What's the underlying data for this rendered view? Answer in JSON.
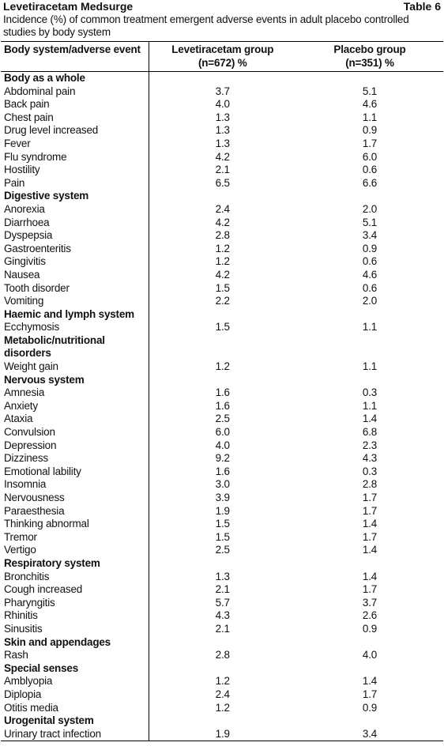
{
  "header": {
    "title": "Levetiracetam Medsurge",
    "table_number": "Table 6",
    "subtitle": "Incidence (%) of common treatment emergent adverse events in adult placebo controlled studies by body system"
  },
  "table": {
    "columns": [
      [
        "Body system/adverse event"
      ],
      [
        "Levetiracetam group",
        "(n=672) %"
      ],
      [
        "Placebo group",
        "(n=351) %"
      ]
    ],
    "groups": [
      {
        "name": "Body as a whole",
        "rows": [
          [
            "Abdominal pain",
            "3.7",
            "5.1"
          ],
          [
            "Back pain",
            "4.0",
            "4.6"
          ],
          [
            "Chest pain",
            "1.3",
            "1.1"
          ],
          [
            "Drug level increased",
            "1.3",
            "0.9"
          ],
          [
            "Fever",
            "1.3",
            "1.7"
          ],
          [
            "Flu syndrome",
            "4.2",
            "6.0"
          ],
          [
            "Hostility",
            "2.1",
            "0.6"
          ],
          [
            "Pain",
            "6.5",
            "6.6"
          ]
        ]
      },
      {
        "name": "Digestive system",
        "rows": [
          [
            "Anorexia",
            "2.4",
            "2.0"
          ],
          [
            "Diarrhoea",
            "4.2",
            "5.1"
          ],
          [
            "Dyspepsia",
            "2.8",
            "3.4"
          ],
          [
            "Gastroenteritis",
            "1.2",
            "0.9"
          ],
          [
            "Gingivitis",
            "1.2",
            "0.6"
          ],
          [
            "Nausea",
            "4.2",
            "4.6"
          ],
          [
            "Tooth disorder",
            "1.5",
            "0.6"
          ],
          [
            "Vomiting",
            "2.2",
            "2.0"
          ]
        ]
      },
      {
        "name": "Haemic and lymph system",
        "rows": [
          [
            "Ecchymosis",
            "1.5",
            "1.1"
          ]
        ]
      },
      {
        "name": "Metabolic/nutritional disorders",
        "rows": [
          [
            "Weight gain",
            "1.2",
            "1.1"
          ]
        ]
      },
      {
        "name": "Nervous system",
        "rows": [
          [
            "Amnesia",
            "1.6",
            "0.3"
          ],
          [
            "Anxiety",
            "1.6",
            "1.1"
          ],
          [
            "Ataxia",
            "2.5",
            "1.4"
          ],
          [
            "Convulsion",
            "6.0",
            "6.8"
          ],
          [
            "Depression",
            "4.0",
            "2.3"
          ],
          [
            "Dizziness",
            "9.2",
            "4.3"
          ],
          [
            "Emotional lability",
            "1.6",
            "0.3"
          ],
          [
            "Insomnia",
            "3.0",
            "2.8"
          ],
          [
            "Nervousness",
            "3.9",
            "1.7"
          ],
          [
            "Paraesthesia",
            "1.9",
            "1.7"
          ],
          [
            "Thinking abnormal",
            "1.5",
            "1.4"
          ],
          [
            "Tremor",
            "1.5",
            "1.7"
          ],
          [
            "Vertigo",
            "2.5",
            "1.4"
          ]
        ]
      },
      {
        "name": "Respiratory system",
        "rows": [
          [
            "Bronchitis",
            "1.3",
            "1.4"
          ],
          [
            "Cough increased",
            "2.1",
            "1.7"
          ],
          [
            "Pharyngitis",
            "5.7",
            "3.7"
          ],
          [
            "Rhinitis",
            "4.3",
            "2.6"
          ],
          [
            "Sinusitis",
            "2.1",
            "0.9"
          ]
        ]
      },
      {
        "name": "Skin and appendages",
        "rows": [
          [
            "Rash",
            "2.8",
            "4.0"
          ]
        ]
      },
      {
        "name": "Special senses",
        "rows": [
          [
            "Amblyopia",
            "1.2",
            "1.4"
          ],
          [
            "Diplopia",
            "2.4",
            "1.7"
          ],
          [
            "Otitis media",
            "1.2",
            "0.9"
          ]
        ]
      },
      {
        "name": "Urogenital system",
        "rows": [
          [
            "Urinary tract infection",
            "1.9",
            "3.4"
          ]
        ]
      }
    ]
  }
}
